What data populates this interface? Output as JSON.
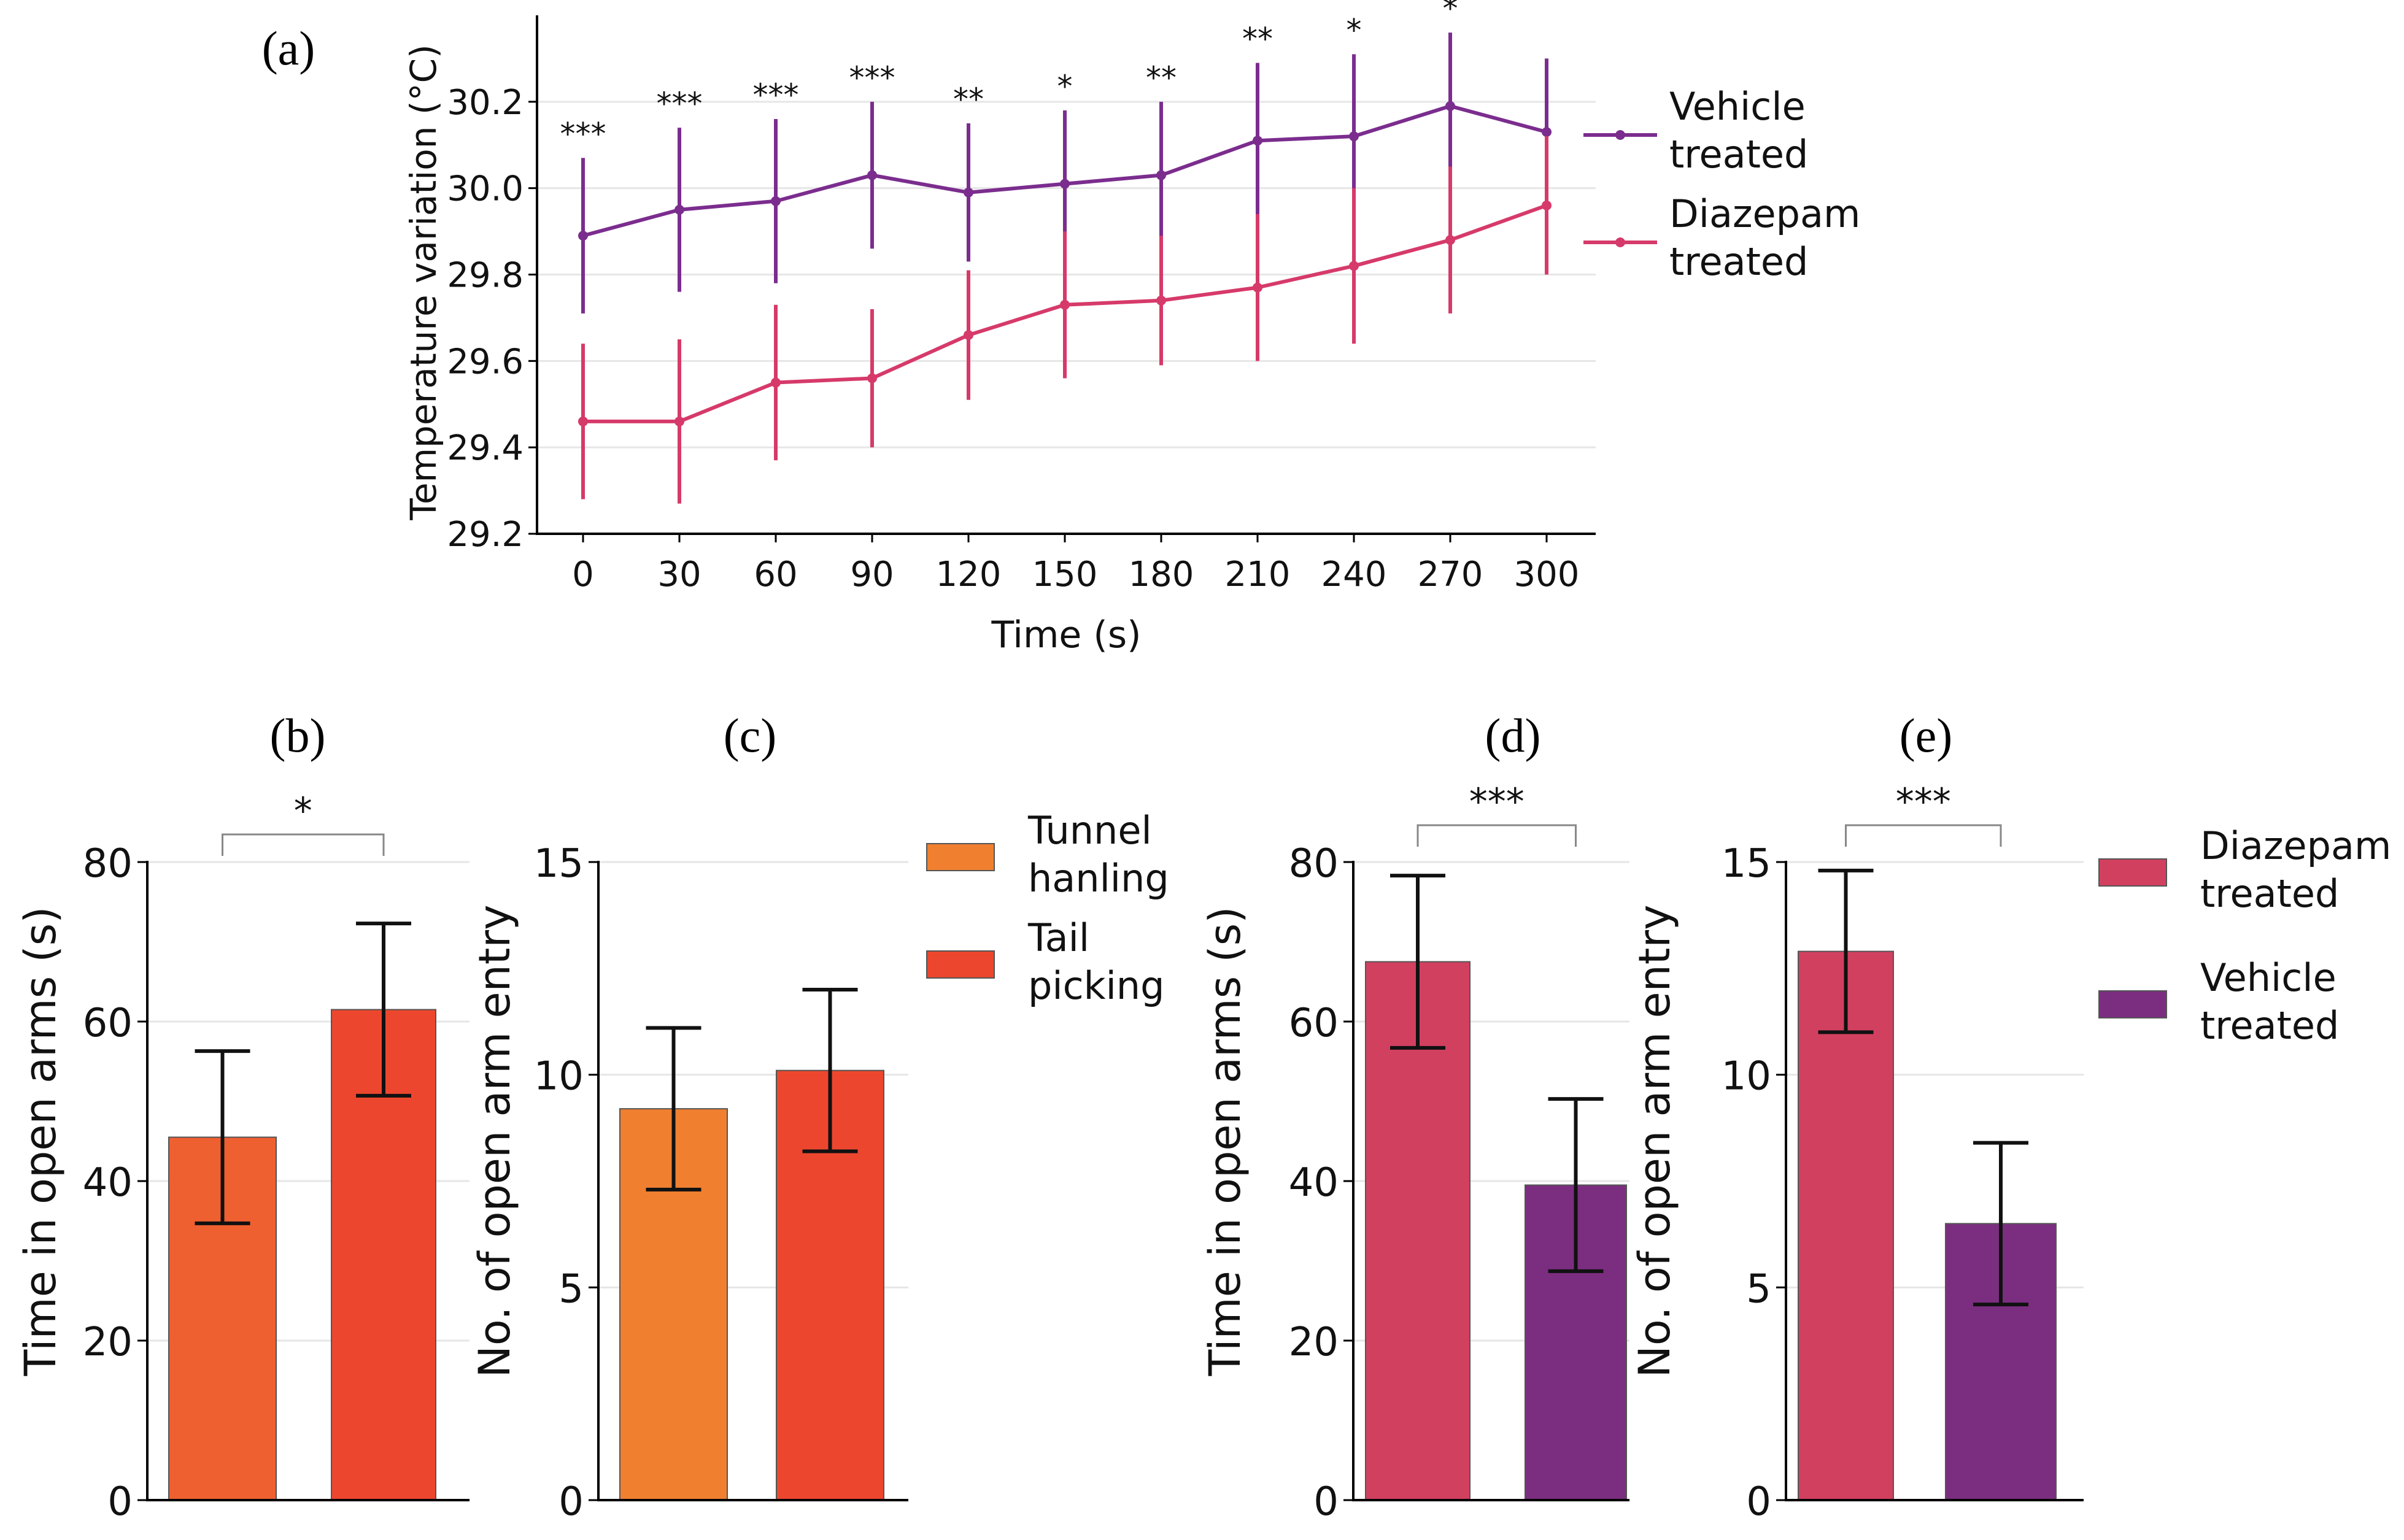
{
  "chart_data": [
    {
      "panel": "(a)",
      "type": "line",
      "xlabel": "Time (s)",
      "ylabel": "Temperature variation (°C)",
      "xlim": [
        0,
        300
      ],
      "ylim": [
        29.2,
        30.4
      ],
      "x_ticks": [
        0,
        30,
        60,
        90,
        120,
        150,
        180,
        210,
        240,
        270,
        300
      ],
      "y_ticks": [
        29.2,
        29.4,
        29.6,
        29.8,
        30.0,
        30.2
      ],
      "y_tick_labels": [
        "29.2",
        "29.4",
        "29.6",
        "29.8",
        "30.0",
        "30.2"
      ],
      "grid": true,
      "legend_position": "right",
      "series": [
        {
          "name": "Vehicle treated",
          "legend_lines": [
            "Vehicle",
            "treated"
          ],
          "color": "#7b2d8e",
          "values": [
            29.89,
            29.95,
            29.97,
            30.03,
            29.99,
            30.01,
            30.03,
            30.11,
            30.12,
            30.19,
            30.13
          ],
          "errors": [
            0.18,
            0.19,
            0.19,
            0.17,
            0.16,
            0.17,
            0.17,
            0.18,
            0.19,
            0.17,
            0.17
          ]
        },
        {
          "name": "Diazepam treated",
          "legend_lines": [
            "Diazepam",
            "treated"
          ],
          "color": "#d63a6a",
          "values": [
            29.46,
            29.46,
            29.55,
            29.56,
            29.66,
            29.73,
            29.74,
            29.77,
            29.82,
            29.88,
            29.96
          ],
          "errors": [
            0.18,
            0.19,
            0.18,
            0.16,
            0.15,
            0.17,
            0.15,
            0.17,
            0.18,
            0.17,
            0.16
          ]
        }
      ],
      "annotations": [
        "***",
        "***",
        "***",
        "***",
        "**",
        "*",
        "**",
        "**",
        "*",
        "*",
        ""
      ]
    },
    {
      "panel": "(b)",
      "type": "bar",
      "categories": [
        "Tunnel hanling",
        "Tail picking"
      ],
      "values": [
        45.5,
        61.5
      ],
      "errors": [
        10.8,
        10.8
      ],
      "colors": [
        "#ef6030",
        "#ec472e"
      ],
      "ylabel": "Time in open arms (s)",
      "ylim": [
        0,
        80
      ],
      "y_ticks": [
        0,
        20,
        40,
        60,
        80
      ],
      "significance": "*"
    },
    {
      "panel": "(c)",
      "type": "bar",
      "categories": [
        "Tunnel hanling",
        "Tail picking"
      ],
      "values": [
        9.2,
        10.1
      ],
      "errors": [
        1.9,
        1.9
      ],
      "colors": [
        "#f08030",
        "#ec472e"
      ],
      "ylabel": "No. of open arm entry",
      "ylim": [
        0,
        15
      ],
      "y_ticks": [
        0,
        5,
        10,
        15
      ],
      "legend": [
        {
          "lines": [
            "Tunnel",
            "hanling"
          ],
          "color": "#f08030"
        },
        {
          "lines": [
            "Tail",
            "picking"
          ],
          "color": "#ec472e"
        }
      ]
    },
    {
      "panel": "(d)",
      "type": "bar",
      "categories": [
        "Diazepam treated",
        "Vehicle treated"
      ],
      "values": [
        67.5,
        39.5
      ],
      "errors": [
        10.8,
        10.8
      ],
      "colors": [
        "#d24060",
        "#7b2e80"
      ],
      "ylabel": "Time in open arms (s)",
      "ylim": [
        0,
        80
      ],
      "y_ticks": [
        0,
        20,
        40,
        60,
        80
      ],
      "significance": "***"
    },
    {
      "panel": "(e)",
      "type": "bar",
      "categories": [
        "Diazepam treated",
        "Vehicle treated"
      ],
      "values": [
        12.9,
        6.5
      ],
      "errors": [
        1.9,
        1.9
      ],
      "colors": [
        "#d24060",
        "#7b2e80"
      ],
      "ylabel": "No. of open arm entry",
      "ylim": [
        0,
        15
      ],
      "y_ticks": [
        0,
        5,
        10,
        15
      ],
      "significance": "***",
      "legend": [
        {
          "lines": [
            "Diazepam",
            "treated"
          ],
          "color": "#d24060"
        },
        {
          "lines": [
            "Vehicle",
            "treated"
          ],
          "color": "#7b2e80"
        }
      ]
    }
  ]
}
